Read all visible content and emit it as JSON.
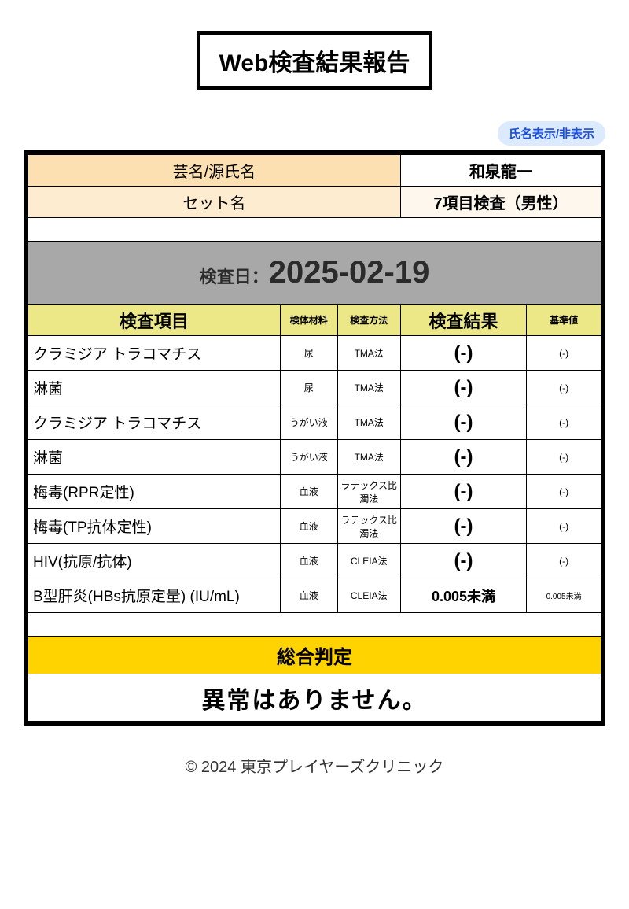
{
  "title": "Web検査結果報告",
  "toggle_label": "氏名表示/非表示",
  "info": {
    "name_label": "芸名/源氏名",
    "name_value": "和泉龍一",
    "set_label": "セット名",
    "set_value": "7項目検査（男性）"
  },
  "date": {
    "label": "検査日：",
    "value": "2025-02-19"
  },
  "headers": {
    "item": "検査項目",
    "material": "検体材料",
    "method": "検査方法",
    "result": "検査結果",
    "ref": "基準値"
  },
  "rows": [
    {
      "item": "クラミジア トラコマチス",
      "material": "尿",
      "method": "TMA法",
      "result": "(-)",
      "ref": "(-)"
    },
    {
      "item": "淋菌",
      "material": "尿",
      "method": "TMA法",
      "result": "(-)",
      "ref": "(-)"
    },
    {
      "item": "クラミジア トラコマチス",
      "material": "うがい液",
      "method": "TMA法",
      "result": "(-)",
      "ref": "(-)"
    },
    {
      "item": "淋菌",
      "material": "うがい液",
      "method": "TMA法",
      "result": "(-)",
      "ref": "(-)"
    },
    {
      "item": "梅毒(RPR定性)",
      "material": "血液",
      "method": "ラテックス比濁法",
      "result": "(-)",
      "ref": "(-)"
    },
    {
      "item": "梅毒(TP抗体定性)",
      "material": "血液",
      "method": "ラテックス比濁法",
      "result": "(-)",
      "ref": "(-)"
    },
    {
      "item": "HIV(抗原/抗体)",
      "material": "血液",
      "method": "CLEIA法",
      "result": "(-)",
      "ref": "(-)"
    },
    {
      "item": "B型肝炎(HBs抗原定量) (IU/mL)",
      "material": "血液",
      "method": "CLEIA法",
      "result": "0.005未満",
      "ref": "0.005未満",
      "small": true
    }
  ],
  "verdict": {
    "label": "総合判定",
    "value": "異常はありません。"
  },
  "footer": "© 2024 東京プレイヤーズクリニック",
  "style": {
    "col_widths_pct": [
      44,
      10,
      11,
      22,
      13
    ],
    "colors": {
      "title_border": "#000000",
      "toggle_bg": "#dbeafe",
      "toggle_fg": "#1d4ed8",
      "info_label_bg": "#fde0b2",
      "info_label2_bg": "#fdeccf",
      "info_value2_bg": "#fdf7ed",
      "date_bg": "#a8a8a8",
      "header_bg": "#ece888",
      "verdict_label_bg": "#ffd300",
      "border": "#000000",
      "bg": "#ffffff"
    }
  }
}
